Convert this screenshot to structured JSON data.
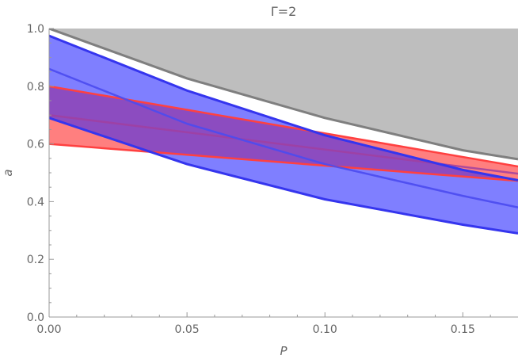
{
  "chart_data": {
    "type": "area",
    "title": "Γ=2",
    "xlabel": "P",
    "ylabel": "a",
    "xlim": [
      0,
      0.17
    ],
    "ylim": [
      0,
      1.0
    ],
    "x_ticks": [
      0.0,
      0.05,
      0.1,
      0.15
    ],
    "x_tick_labels": [
      "0.00",
      "0.05",
      "0.10",
      "0.15"
    ],
    "y_ticks": [
      0.0,
      0.2,
      0.4,
      0.6,
      0.8,
      1.0
    ],
    "y_tick_labels": [
      "0.0",
      "0.2",
      "0.4",
      "0.6",
      "0.8",
      "1.0"
    ],
    "grid": false,
    "legend": "none",
    "colors": {
      "gray_region": "#bebebe",
      "gray_line": "#7f7f7f",
      "red_fill": "#ff7f7f",
      "red_line": "#ff4040",
      "blue_fill": "#7f7fff",
      "blue_line": "#3535ee",
      "overlap_fill": "#8c4cc0",
      "overlap_line": "#a040a0",
      "axis": "#999999",
      "text": "#666666"
    },
    "series": [
      {
        "role": "gray-region-boundary",
        "x": [
          0.0,
          0.05,
          0.1,
          0.15,
          0.17
        ],
        "y": [
          1.0,
          0.827,
          0.69,
          0.578,
          0.547
        ]
      },
      {
        "role": "red-band-upper",
        "x": [
          0.0,
          0.17
        ],
        "y": [
          0.8,
          0.522
        ]
      },
      {
        "role": "red-band-middle",
        "x": [
          0.0,
          0.17
        ],
        "y": [
          0.7,
          0.497
        ]
      },
      {
        "role": "red-band-lower",
        "x": [
          0.0,
          0.17
        ],
        "y": [
          0.6,
          0.472
        ]
      },
      {
        "role": "blue-band-upper",
        "x": [
          0.0,
          0.05,
          0.1,
          0.15,
          0.17
        ],
        "y": [
          0.975,
          0.785,
          0.63,
          0.51,
          0.474
        ]
      },
      {
        "role": "blue-band-middle",
        "x": [
          0.0,
          0.05,
          0.1,
          0.15,
          0.17
        ],
        "y": [
          0.86,
          0.67,
          0.53,
          0.42,
          0.38
        ]
      },
      {
        "role": "blue-band-lower",
        "x": [
          0.0,
          0.05,
          0.1,
          0.15,
          0.17
        ],
        "y": [
          0.69,
          0.53,
          0.408,
          0.32,
          0.29
        ]
      }
    ]
  }
}
